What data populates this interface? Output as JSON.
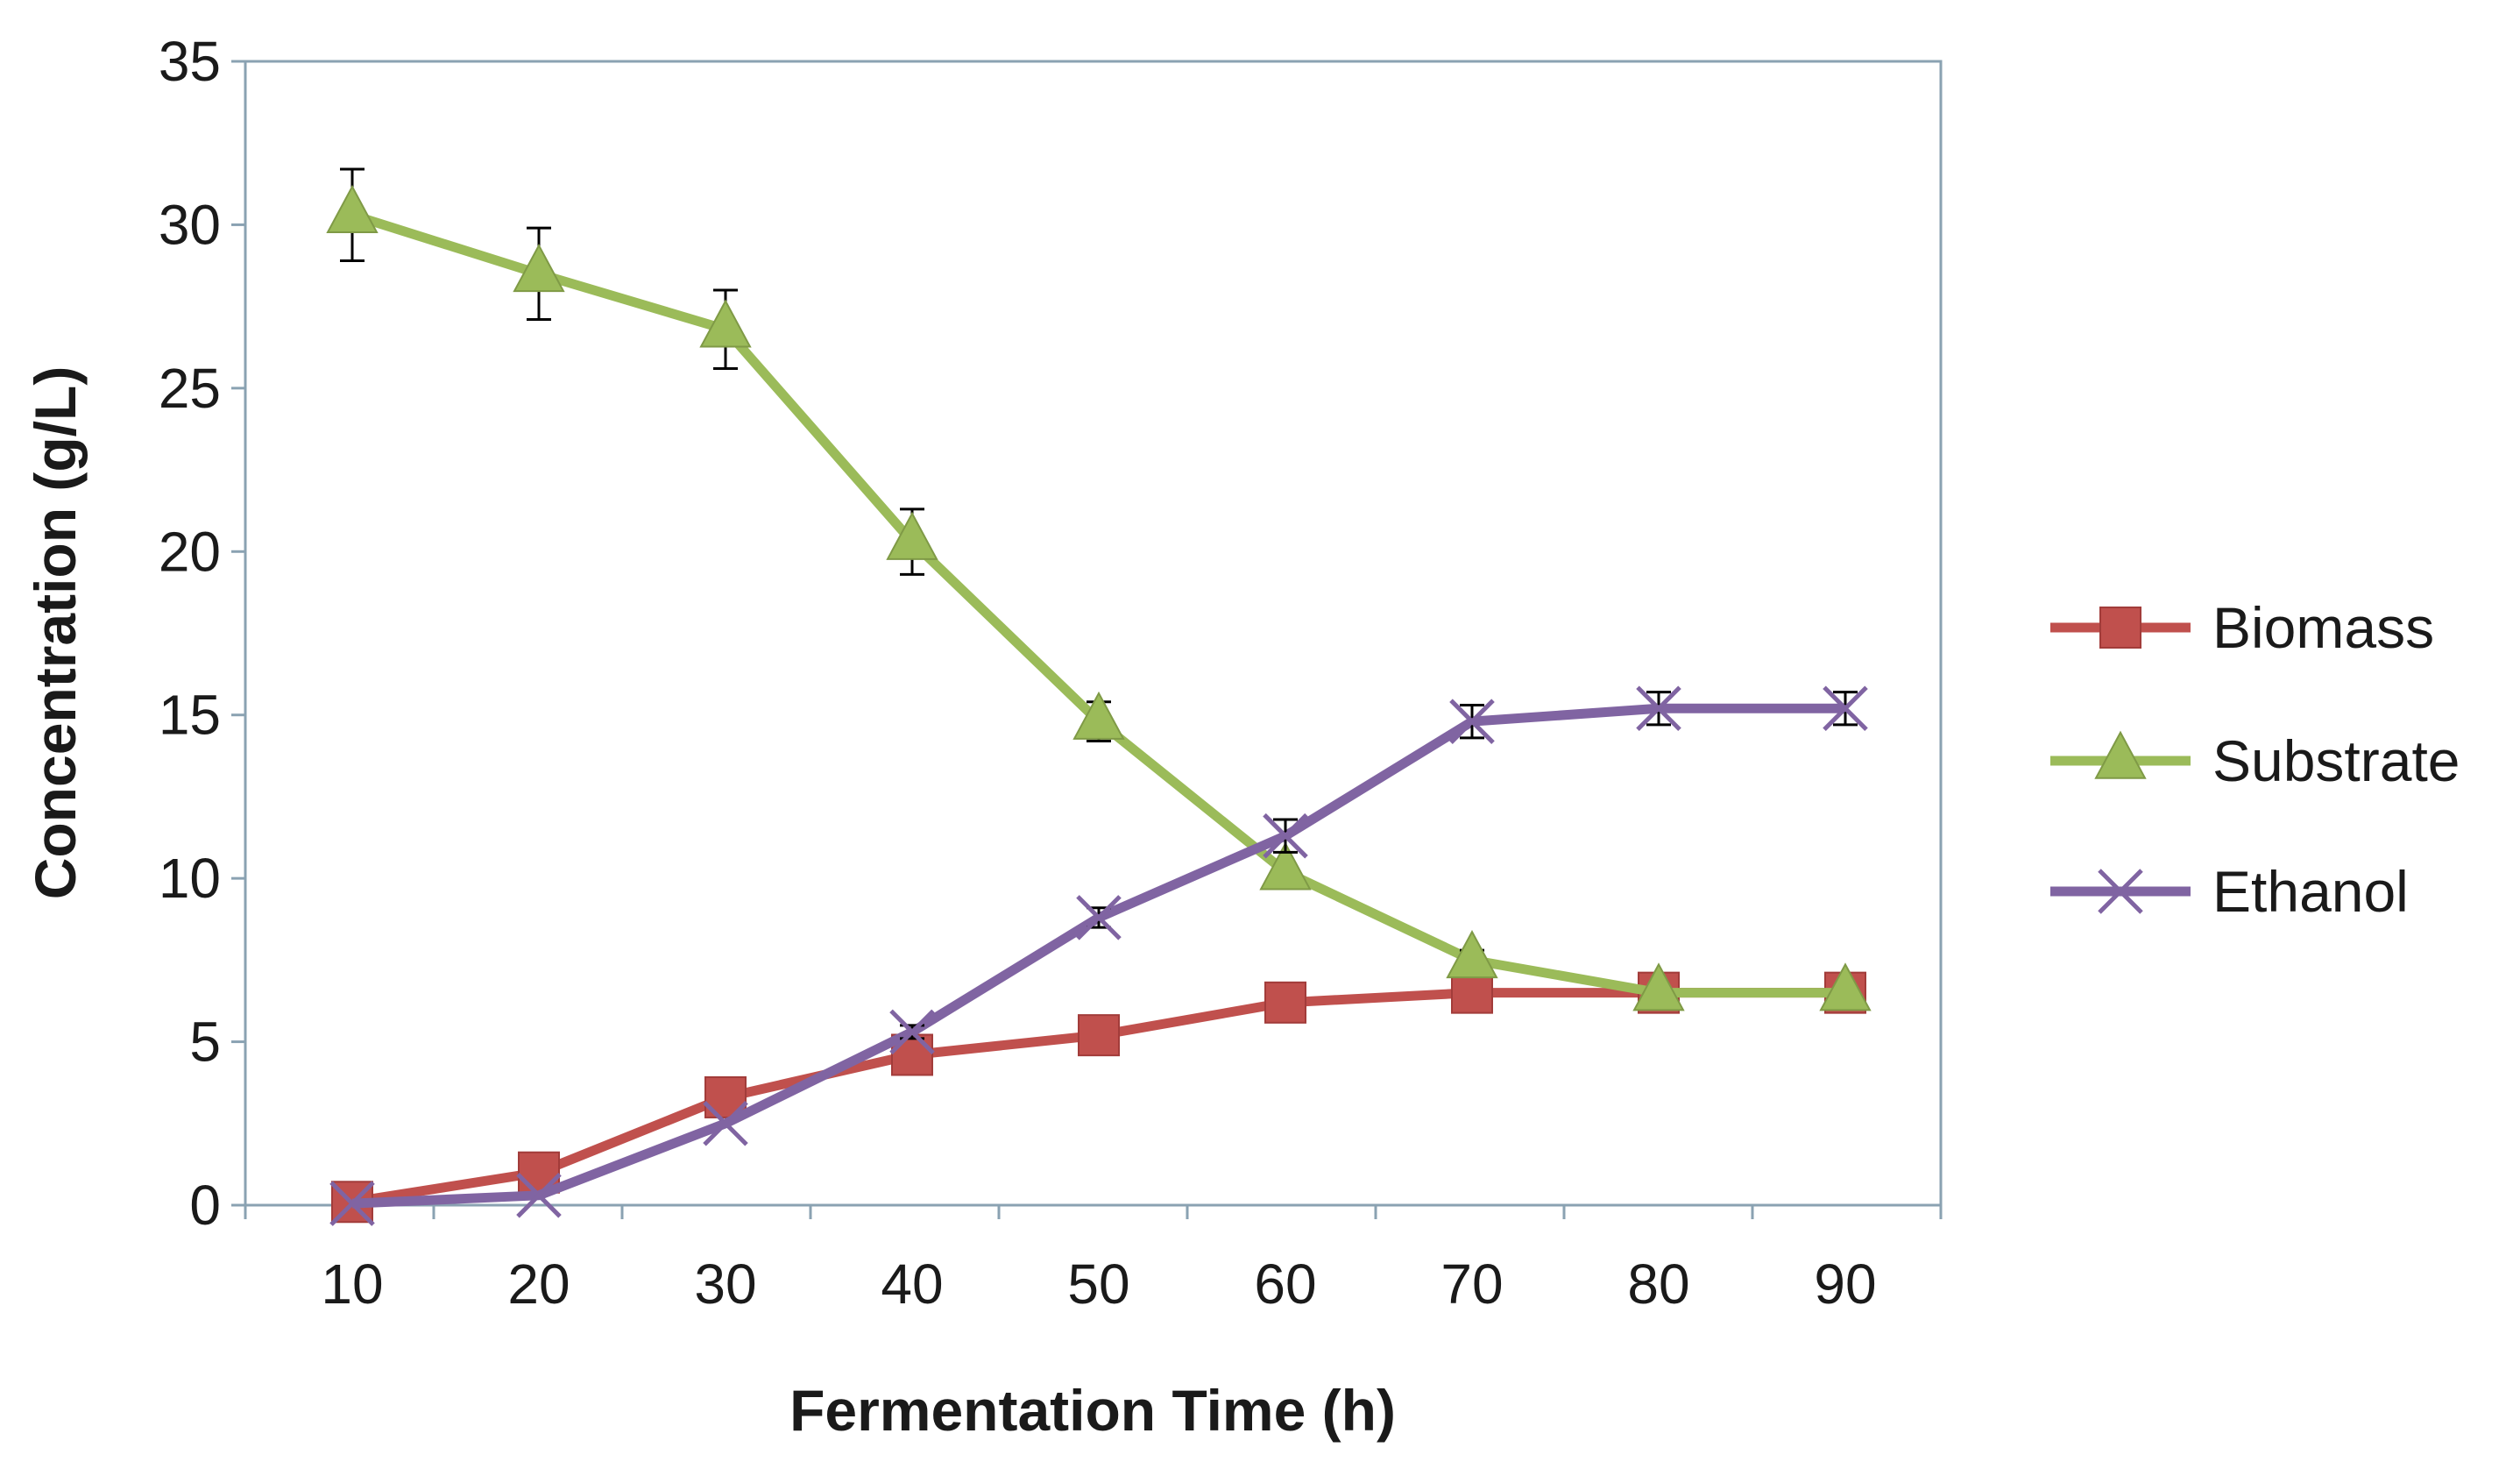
{
  "chart_data": {
    "type": "line",
    "title": "",
    "xlabel": "Fermentation Time (h)",
    "ylabel": "Concentration (g/L)",
    "x": [
      10,
      20,
      30,
      40,
      50,
      60,
      70,
      80,
      90
    ],
    "x_tick_labels": [
      "10",
      "20",
      "30",
      "40",
      "50",
      "60",
      "70",
      "80",
      "90"
    ],
    "ylim": [
      0,
      35
    ],
    "y_ticks": [
      0,
      5,
      10,
      15,
      20,
      25,
      30,
      35
    ],
    "y_tick_labels": [
      "0",
      "5",
      "10",
      "15",
      "20",
      "25",
      "30",
      "35"
    ],
    "grid": false,
    "legend_position": "right",
    "series": [
      {
        "name": "Biomass",
        "color": "#c0504d",
        "marker": "square",
        "values": [
          0.1,
          1.0,
          3.3,
          4.6,
          5.2,
          6.2,
          6.5,
          6.5,
          6.5
        ],
        "errors": [
          0,
          0,
          0,
          0,
          0,
          0,
          0,
          0,
          0
        ]
      },
      {
        "name": "Substrate",
        "color": "#9bbb59",
        "marker": "triangle",
        "values": [
          30.3,
          28.5,
          26.8,
          20.3,
          14.8,
          10.2,
          7.5,
          6.5,
          6.5
        ],
        "errors": [
          1.4,
          1.4,
          1.2,
          1.0,
          0.6,
          0,
          0.3,
          0,
          0
        ]
      },
      {
        "name": "Ethanol",
        "color": "#8064a2",
        "marker": "x",
        "values": [
          0.05,
          0.3,
          2.5,
          5.3,
          8.8,
          11.3,
          14.8,
          15.2,
          15.2
        ],
        "errors": [
          0,
          0,
          0,
          0.2,
          0.3,
          0.5,
          0.5,
          0.5,
          0.5
        ]
      }
    ]
  }
}
